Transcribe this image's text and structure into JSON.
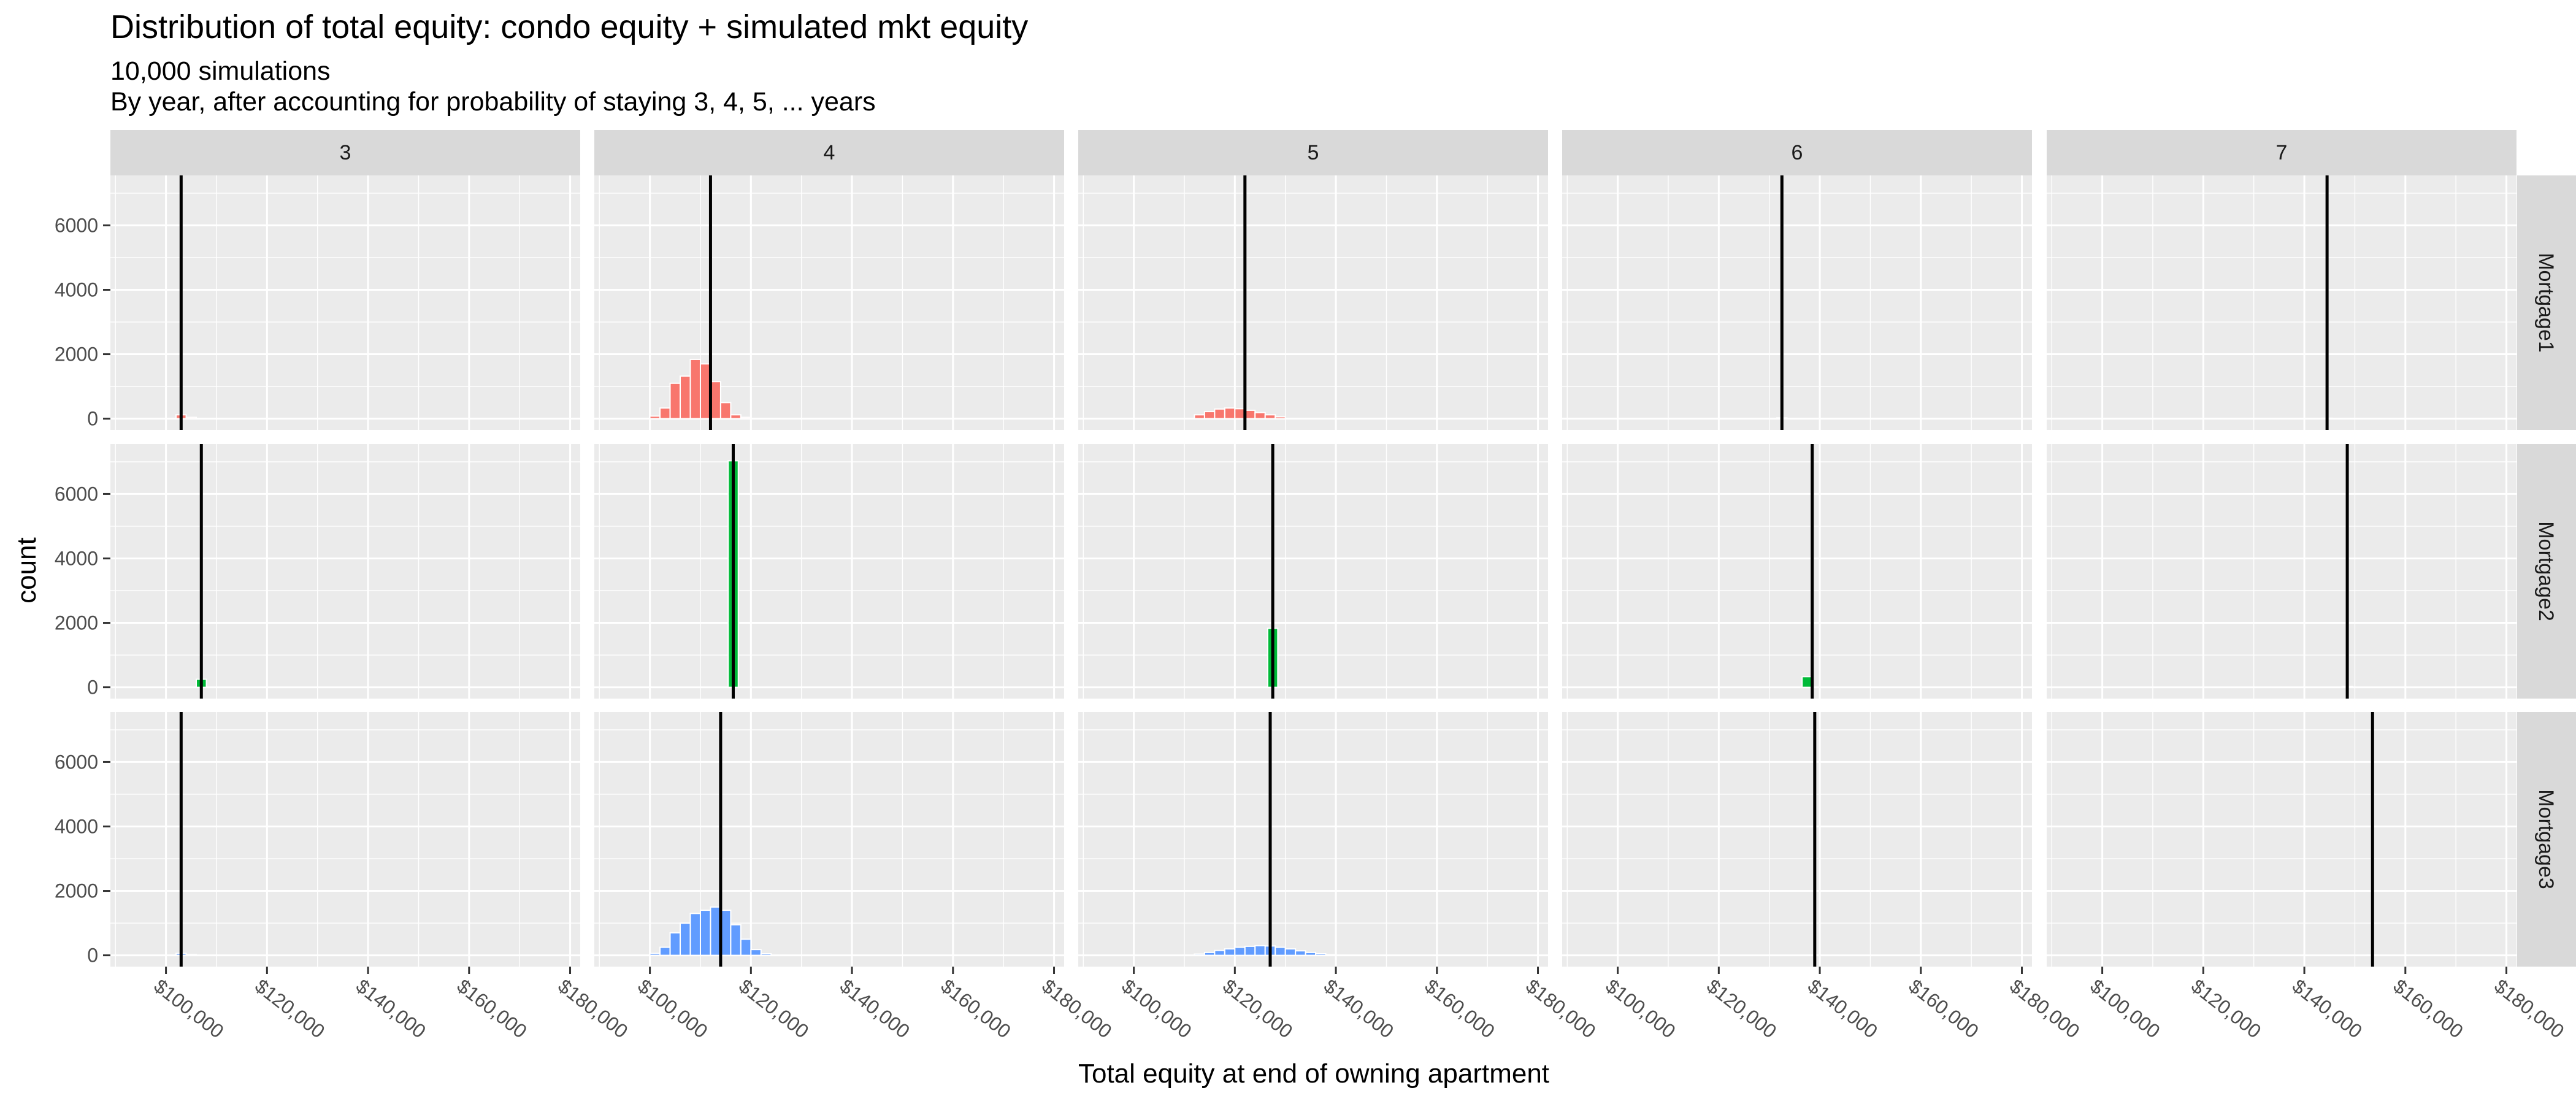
{
  "chart_data": {
    "type": "histogram-facet-grid",
    "title": "Distribution of total equity: condo equity + simulated mkt equity",
    "subtitle_line1": "10,000 simulations",
    "subtitle_line2": "By year, after accounting for probability of staying 3, 4, 5, ... years",
    "xlabel": "Total equity at end of owning apartment",
    "ylabel": "count",
    "xlim": [
      89000,
      182000
    ],
    "ylim": [
      -350,
      7550
    ],
    "x_ticks": [
      100000,
      120000,
      140000,
      160000,
      180000
    ],
    "x_tick_labels": [
      "$100,000",
      "$120,000",
      "$140,000",
      "$160,000",
      "$180,000"
    ],
    "y_ticks": [
      0,
      2000,
      4000,
      6000
    ],
    "y_tick_labels": [
      "0",
      "2000",
      "4000",
      "6000"
    ],
    "grid": true,
    "bin_width": 2000,
    "columns": [
      "3",
      "4",
      "5",
      "6",
      "7"
    ],
    "rows": [
      "Mortgage1",
      "Mortgage2",
      "Mortgage3"
    ],
    "row_colors": {
      "Mortgage1": "#F8766D",
      "Mortgage2": "#00BA38",
      "Mortgage3": "#619CFF"
    },
    "panels": [
      {
        "row": "Mortgage1",
        "col": "3",
        "mean": 103000,
        "bins": [
          {
            "x": 103000,
            "count": 120
          },
          {
            "x": 105000,
            "count": 40
          }
        ]
      },
      {
        "row": "Mortgage1",
        "col": "4",
        "mean": 112000,
        "bins": [
          {
            "x": 101000,
            "count": 80
          },
          {
            "x": 103000,
            "count": 330
          },
          {
            "x": 105000,
            "count": 1100
          },
          {
            "x": 107000,
            "count": 1320
          },
          {
            "x": 109000,
            "count": 1840
          },
          {
            "x": 111000,
            "count": 1700
          },
          {
            "x": 113000,
            "count": 1150
          },
          {
            "x": 115000,
            "count": 500
          },
          {
            "x": 117000,
            "count": 120
          },
          {
            "x": 119000,
            "count": 40
          }
        ]
      },
      {
        "row": "Mortgage1",
        "col": "5",
        "mean": 122000,
        "bins": [
          {
            "x": 113000,
            "count": 120
          },
          {
            "x": 115000,
            "count": 220
          },
          {
            "x": 117000,
            "count": 300
          },
          {
            "x": 119000,
            "count": 330
          },
          {
            "x": 121000,
            "count": 310
          },
          {
            "x": 123000,
            "count": 260
          },
          {
            "x": 125000,
            "count": 190
          },
          {
            "x": 127000,
            "count": 120
          },
          {
            "x": 129000,
            "count": 60
          }
        ]
      },
      {
        "row": "Mortgage1",
        "col": "6",
        "mean": 132500,
        "bins": [
          {
            "x": 132500,
            "count": 25
          }
        ]
      },
      {
        "row": "Mortgage1",
        "col": "7",
        "mean": 144500,
        "bins": [
          {
            "x": 144500,
            "count": 15
          }
        ]
      },
      {
        "row": "Mortgage2",
        "col": "3",
        "mean": 107000,
        "bins": [
          {
            "x": 107000,
            "count": 250
          }
        ]
      },
      {
        "row": "Mortgage2",
        "col": "4",
        "mean": 116500,
        "bins": [
          {
            "x": 116500,
            "count": 7030
          }
        ]
      },
      {
        "row": "Mortgage2",
        "col": "5",
        "mean": 127500,
        "bins": [
          {
            "x": 127500,
            "count": 1830
          }
        ]
      },
      {
        "row": "Mortgage2",
        "col": "6",
        "mean": 138500,
        "bins": [
          {
            "x": 137500,
            "count": 330
          }
        ]
      },
      {
        "row": "Mortgage2",
        "col": "7",
        "mean": 148500,
        "bins": [
          {
            "x": 148500,
            "count": 30
          }
        ]
      },
      {
        "row": "Mortgage3",
        "col": "3",
        "mean": 103000,
        "bins": [
          {
            "x": 103000,
            "count": 60
          },
          {
            "x": 105000,
            "count": 25
          }
        ]
      },
      {
        "row": "Mortgage3",
        "col": "4",
        "mean": 114000,
        "bins": [
          {
            "x": 101000,
            "count": 60
          },
          {
            "x": 103000,
            "count": 250
          },
          {
            "x": 105000,
            "count": 700
          },
          {
            "x": 107000,
            "count": 1000
          },
          {
            "x": 109000,
            "count": 1300
          },
          {
            "x": 111000,
            "count": 1400
          },
          {
            "x": 113000,
            "count": 1500
          },
          {
            "x": 115000,
            "count": 1400
          },
          {
            "x": 117000,
            "count": 950
          },
          {
            "x": 119000,
            "count": 500
          },
          {
            "x": 121000,
            "count": 180
          },
          {
            "x": 123000,
            "count": 50
          }
        ]
      },
      {
        "row": "Mortgage3",
        "col": "5",
        "mean": 127000,
        "bins": [
          {
            "x": 113000,
            "count": 40
          },
          {
            "x": 115000,
            "count": 90
          },
          {
            "x": 117000,
            "count": 150
          },
          {
            "x": 119000,
            "count": 200
          },
          {
            "x": 121000,
            "count": 250
          },
          {
            "x": 123000,
            "count": 280
          },
          {
            "x": 125000,
            "count": 300
          },
          {
            "x": 127000,
            "count": 290
          },
          {
            "x": 129000,
            "count": 250
          },
          {
            "x": 131000,
            "count": 200
          },
          {
            "x": 133000,
            "count": 140
          },
          {
            "x": 135000,
            "count": 90
          },
          {
            "x": 137000,
            "count": 50
          },
          {
            "x": 139000,
            "count": 20
          }
        ]
      },
      {
        "row": "Mortgage3",
        "col": "6",
        "mean": 139000,
        "bins": [
          {
            "x": 139000,
            "count": 10
          }
        ]
      },
      {
        "row": "Mortgage3",
        "col": "7",
        "mean": 153500,
        "bins": [
          {
            "x": 153500,
            "count": 10
          }
        ]
      }
    ]
  }
}
